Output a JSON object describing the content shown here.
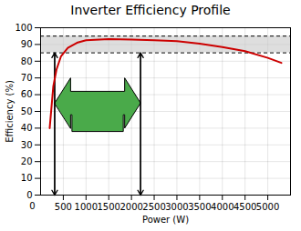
{
  "chart_data": {
    "type": "line",
    "title": "Inverter Efficiency Profile",
    "xlabel": "Power (W)",
    "ylabel": "Efficiency (%)",
    "x": [
      200,
      280,
      350,
      450,
      600,
      800,
      1000,
      1500,
      2000,
      2500,
      3000,
      3500,
      4000,
      4500,
      5000,
      5300
    ],
    "values": [
      40,
      65,
      75,
      83,
      88,
      91,
      92.5,
      93.2,
      93.0,
      92.5,
      92.0,
      90.5,
      88.5,
      86.0,
      82.0,
      79.0
    ],
    "color": "#cc0000",
    "xlim": [
      0,
      5500
    ],
    "ylim": [
      0,
      100
    ],
    "xticks": [
      500,
      1000,
      1500,
      2000,
      2500,
      3000,
      3500,
      4000,
      4500,
      5000
    ],
    "yticks": [
      0,
      10,
      20,
      30,
      40,
      50,
      60,
      70,
      80,
      90,
      100
    ],
    "grid": true,
    "shade": {
      "y1": 85,
      "y2": 95,
      "color": "#c8c8c8"
    },
    "hlines": [
      {
        "y": 95,
        "color": "black",
        "line_style": "dashed"
      },
      {
        "y": 85,
        "color": "black",
        "line_style": "dashed"
      }
    ],
    "v_arrows": [
      {
        "x": 310,
        "y1": 0,
        "y2": 85,
        "color": "black"
      },
      {
        "x": 2200,
        "y1": 0,
        "y2": 85,
        "color": "black"
      }
    ],
    "h_arrow": {
      "x1": 310,
      "x2": 2200,
      "y": 55,
      "head_half_height": 15,
      "body_half_height": 7,
      "head_length": 350,
      "notch_depth": 10,
      "notch_inset": 30,
      "color": "#4aaa4a"
    },
    "annotations": [
      {
        "text": "0",
        "x": 0,
        "y": 0
      }
    ]
  }
}
